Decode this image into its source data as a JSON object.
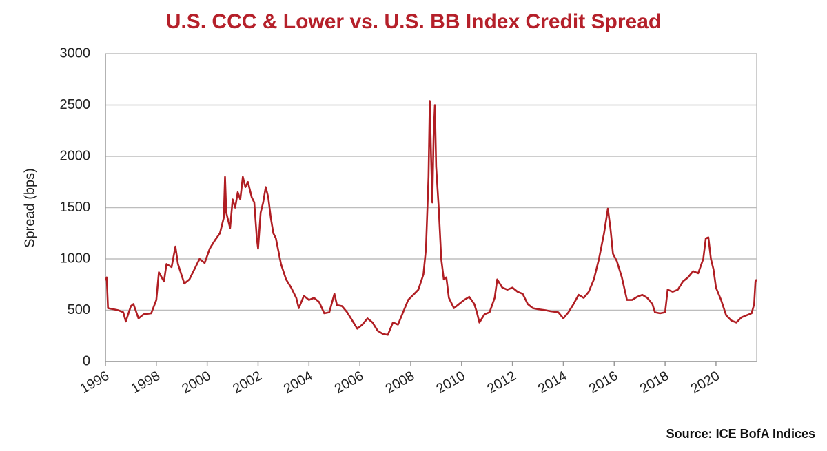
{
  "chart_data": {
    "type": "line",
    "title": "U.S. CCC & Lower vs. U.S. BB Index Credit Spread",
    "y_label": "Spread (bps)",
    "source": "Source: ICE BofA Indices",
    "x": [
      1996.0,
      1996.05,
      1996.1,
      1996.3,
      1996.5,
      1996.7,
      1996.8,
      1997.0,
      1997.1,
      1997.3,
      1997.5,
      1997.8,
      1998.0,
      1998.1,
      1998.3,
      1998.4,
      1998.6,
      1998.75,
      1998.85,
      1999.1,
      1999.3,
      1999.5,
      1999.7,
      1999.9,
      2000.1,
      2000.3,
      2000.5,
      2000.65,
      2000.7,
      2000.75,
      2000.9,
      2001.0,
      2001.1,
      2001.2,
      2001.3,
      2001.4,
      2001.5,
      2001.6,
      2001.75,
      2001.85,
      2001.95,
      2002.0,
      2002.1,
      2002.2,
      2002.3,
      2002.4,
      2002.5,
      2002.6,
      2002.7,
      2002.9,
      2003.1,
      2003.3,
      2003.5,
      2003.6,
      2003.8,
      2004.0,
      2004.2,
      2004.4,
      2004.6,
      2004.8,
      2005.0,
      2005.1,
      2005.3,
      2005.5,
      2005.7,
      2005.9,
      2006.1,
      2006.3,
      2006.5,
      2006.7,
      2006.9,
      2007.1,
      2007.3,
      2007.5,
      2007.7,
      2007.9,
      2008.1,
      2008.3,
      2008.5,
      2008.6,
      2008.7,
      2008.75,
      2008.8,
      2008.85,
      2008.9,
      2008.95,
      2009.0,
      2009.1,
      2009.2,
      2009.3,
      2009.4,
      2009.5,
      2009.7,
      2009.9,
      2010.1,
      2010.3,
      2010.5,
      2010.6,
      2010.7,
      2010.9,
      2011.1,
      2011.3,
      2011.4,
      2011.6,
      2011.8,
      2012.0,
      2012.2,
      2012.4,
      2012.6,
      2012.8,
      2013.0,
      2013.3,
      2013.5,
      2013.8,
      2014.0,
      2014.2,
      2014.4,
      2014.6,
      2014.8,
      2015.0,
      2015.2,
      2015.4,
      2015.6,
      2015.75,
      2015.85,
      2015.95,
      2016.1,
      2016.3,
      2016.5,
      2016.7,
      2016.9,
      2017.1,
      2017.3,
      2017.5,
      2017.6,
      2017.8,
      2018.0,
      2018.1,
      2018.3,
      2018.5,
      2018.7,
      2018.9,
      2019.1,
      2019.3,
      2019.5,
      2019.6,
      2019.7,
      2019.8,
      2019.9,
      2020.0,
      2020.2,
      2020.4,
      2020.6,
      2020.8,
      2021.0,
      2021.2,
      2021.4,
      2021.5,
      2021.55,
      2021.6
    ],
    "series": [
      {
        "name": "CCC & Lower vs. BB spread",
        "color": "#b01e23",
        "values": [
          790,
          820,
          520,
          510,
          500,
          480,
          390,
          540,
          560,
          420,
          460,
          470,
          600,
          870,
          780,
          950,
          920,
          1120,
          950,
          760,
          800,
          900,
          1000,
          960,
          1100,
          1180,
          1250,
          1400,
          1800,
          1450,
          1300,
          1580,
          1500,
          1650,
          1580,
          1800,
          1700,
          1750,
          1600,
          1550,
          1200,
          1100,
          1450,
          1550,
          1700,
          1600,
          1400,
          1250,
          1200,
          950,
          800,
          720,
          620,
          520,
          640,
          600,
          620,
          580,
          470,
          480,
          660,
          550,
          540,
          480,
          400,
          320,
          360,
          420,
          380,
          300,
          270,
          260,
          380,
          360,
          480,
          600,
          650,
          700,
          850,
          1100,
          1800,
          2540,
          2000,
          1550,
          2200,
          2500,
          1900,
          1500,
          1000,
          800,
          820,
          620,
          520,
          560,
          600,
          630,
          560,
          480,
          380,
          460,
          480,
          620,
          800,
          720,
          700,
          720,
          680,
          660,
          560,
          520,
          510,
          500,
          490,
          480,
          420,
          480,
          560,
          650,
          620,
          680,
          800,
          1000,
          1250,
          1490,
          1300,
          1050,
          980,
          820,
          600,
          600,
          630,
          650,
          620,
          560,
          480,
          470,
          480,
          700,
          680,
          700,
          780,
          820,
          880,
          860,
          1000,
          1200,
          1210,
          1000,
          900,
          720,
          600,
          450,
          400,
          380,
          430,
          450,
          470,
          560,
          780,
          800
        ]
      }
    ],
    "xlim": [
      1996,
      2021.6
    ],
    "xticks": [
      1996,
      1998,
      2000,
      2002,
      2004,
      2006,
      2008,
      2010,
      2012,
      2014,
      2016,
      2018,
      2020
    ],
    "ylim": [
      0,
      3000
    ],
    "yticks": [
      0,
      500,
      1000,
      1500,
      2000,
      2500,
      3000
    ],
    "grid": true
  }
}
